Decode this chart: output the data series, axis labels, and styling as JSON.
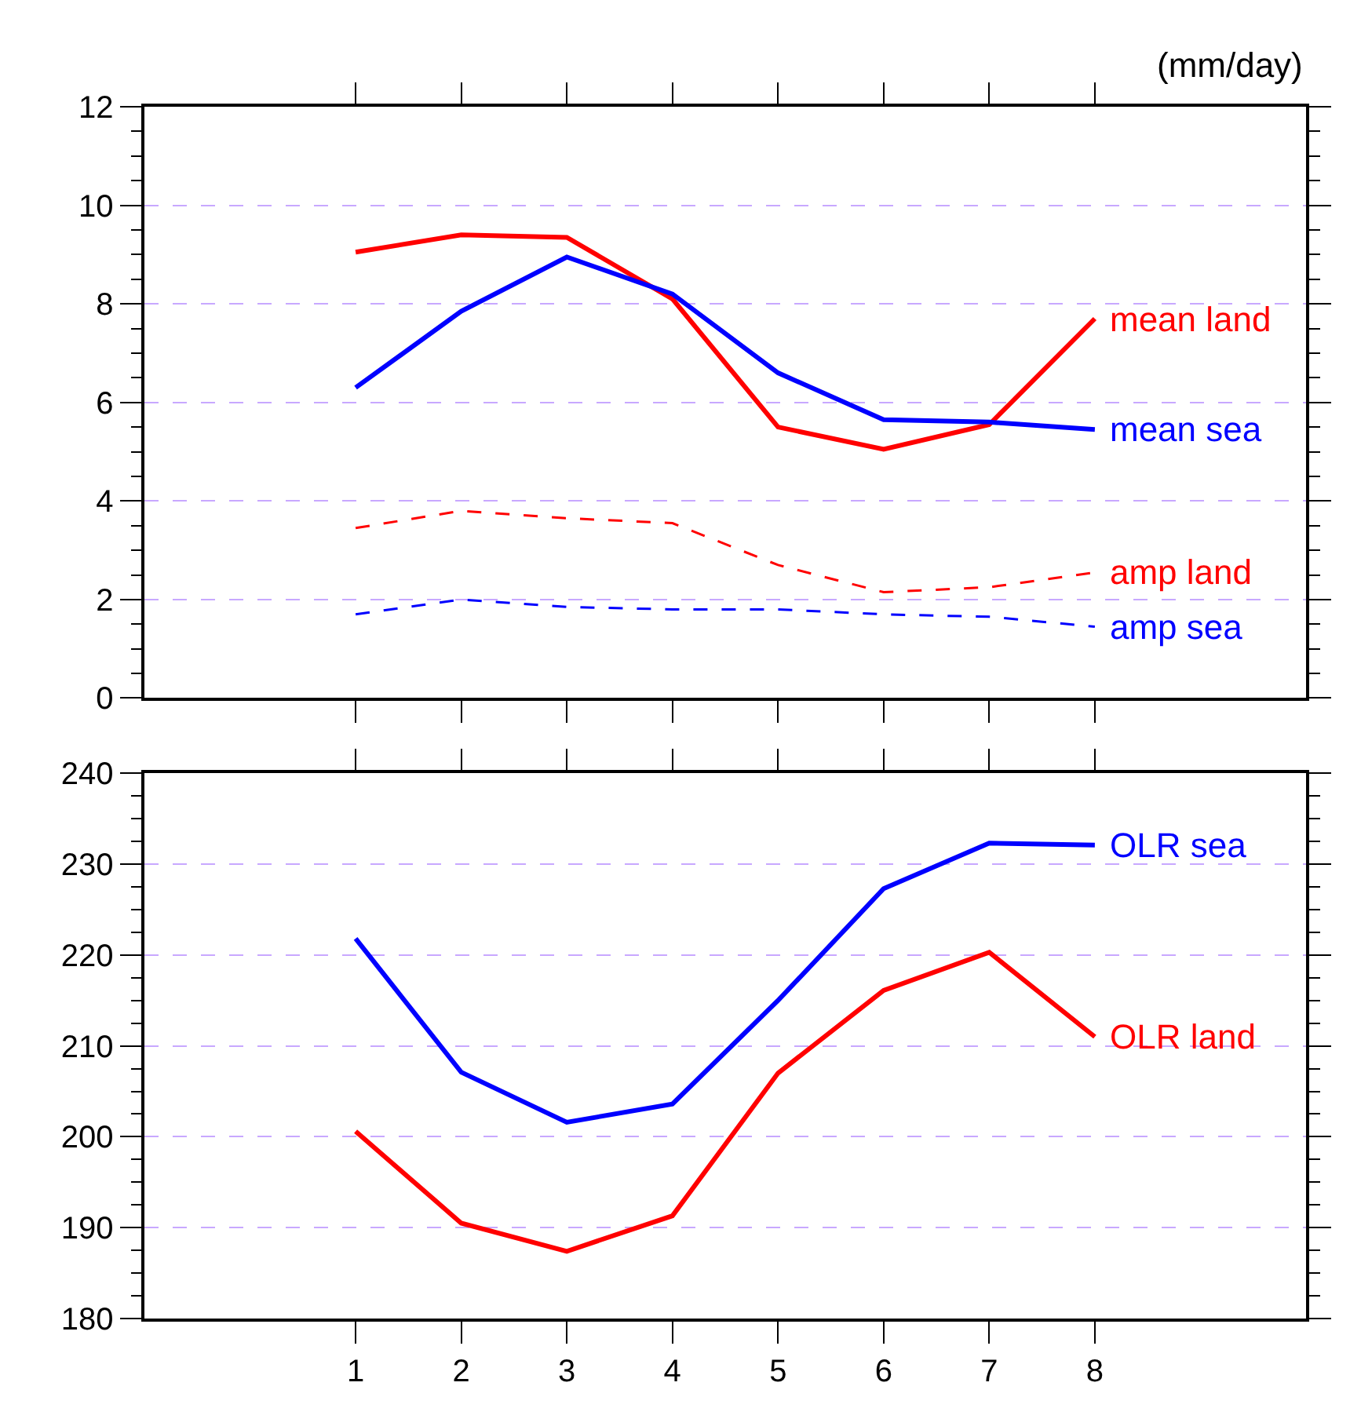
{
  "chart_data": [
    {
      "type": "line",
      "x": [
        1,
        2,
        3,
        4,
        5,
        6,
        7,
        8
      ],
      "xlim": [
        -1,
        10
      ],
      "ylim": [
        0,
        12
      ],
      "yticks": [
        0,
        2,
        4,
        6,
        8,
        10,
        12
      ],
      "grid": "y",
      "tick_labels": "y",
      "annotations": [
        "(mm/day)"
      ],
      "series": [
        {
          "name": "mean land",
          "color": "#ff0000",
          "line_style": "solid",
          "values": [
            9.05,
            9.4,
            9.35,
            8.1,
            5.5,
            5.05,
            5.55,
            7.7
          ]
        },
        {
          "name": "mean sea",
          "color": "#0000ff",
          "line_style": "solid",
          "values": [
            6.3,
            7.85,
            8.95,
            8.2,
            6.6,
            5.65,
            5.6,
            5.45
          ]
        },
        {
          "name": "amp land",
          "color": "#ff0000",
          "line_style": "dashed",
          "values": [
            3.45,
            3.8,
            3.65,
            3.55,
            2.7,
            2.15,
            2.25,
            2.55
          ]
        },
        {
          "name": "amp sea",
          "color": "#0000ff",
          "line_style": "dashed",
          "values": [
            1.7,
            2.0,
            1.85,
            1.8,
            1.8,
            1.7,
            1.65,
            1.45
          ]
        }
      ]
    },
    {
      "type": "line",
      "x": [
        1,
        2,
        3,
        4,
        5,
        6,
        7,
        8
      ],
      "xlim": [
        -1,
        10
      ],
      "xticks": [
        1,
        2,
        3,
        4,
        5,
        6,
        7,
        8
      ],
      "ylim": [
        180,
        240
      ],
      "yticks": [
        180,
        190,
        200,
        210,
        220,
        230,
        240
      ],
      "grid": "y",
      "series": [
        {
          "name": "OLR sea",
          "color": "#0000ff",
          "line_style": "solid",
          "values": [
            221.8,
            207.1,
            201.6,
            203.6,
            215.0,
            227.3,
            232.3,
            232.1
          ]
        },
        {
          "name": "OLR land",
          "color": "#ff0000",
          "line_style": "solid",
          "values": [
            200.6,
            190.5,
            187.4,
            191.3,
            207.0,
            216.1,
            220.3,
            211.0
          ]
        }
      ]
    }
  ]
}
